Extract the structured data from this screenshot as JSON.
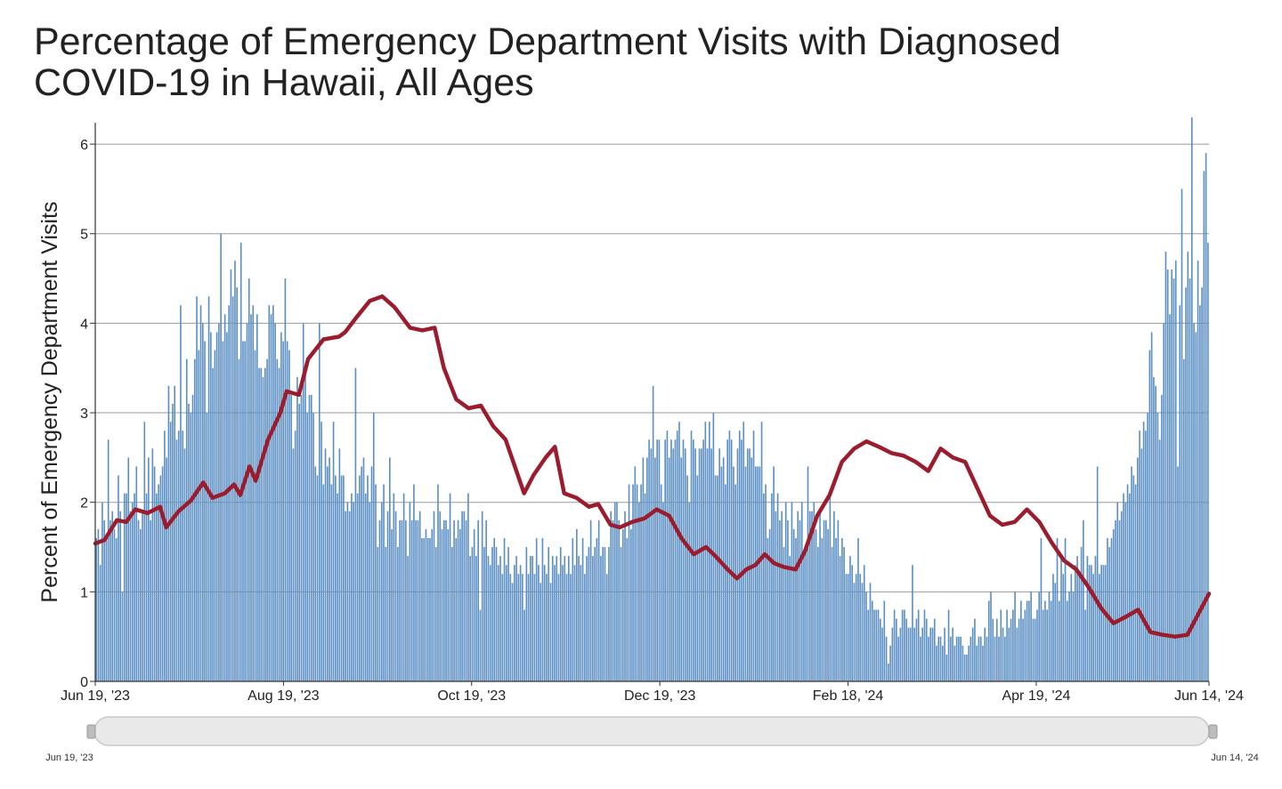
{
  "chart_data": {
    "type": "bar",
    "title": "Percentage of Emergency Department Visits with Diagnosed COVID-19 in Hawaii, All Ages",
    "xlabel": "",
    "ylabel": "Percent of Emergency Department Visits",
    "x_range": [
      "2023-06-19",
      "2024-06-14"
    ],
    "ylim": [
      0,
      6.1
    ],
    "y_ticks": [
      0,
      1,
      2,
      3,
      4,
      5,
      6
    ],
    "x_ticks": [
      {
        "date": "2023-06-19",
        "label": "Jun 19, '23"
      },
      {
        "date": "2023-08-19",
        "label": "Aug 19, '23"
      },
      {
        "date": "2023-10-19",
        "label": "Oct 19, '23"
      },
      {
        "date": "2023-12-19",
        "label": "Dec 19, '23"
      },
      {
        "date": "2024-02-18",
        "label": "Feb 18, '24"
      },
      {
        "date": "2024-04-19",
        "label": "Apr 19, '24"
      },
      {
        "date": "2024-06-14",
        "label": "Jun 14, '24"
      }
    ],
    "grid": true,
    "colors": {
      "bars": "#5b8fc4",
      "trend": "#9b1c2c",
      "grid": "#9a9a9a"
    },
    "series": [
      {
        "kind": "bar",
        "values": [
          1.6,
          1.7,
          1.3,
          2.0,
          1.8,
          1.6,
          2.7,
          1.8,
          1.9,
          1.7,
          1.6,
          2.3,
          1.9,
          1.0,
          2.1,
          2.1,
          2.5,
          1.9,
          2.0,
          2.1,
          2.4,
          1.8,
          1.7,
          1.9,
          2.9,
          2.1,
          2.5,
          1.8,
          2.6,
          2.4,
          2.1,
          2.2,
          2.3,
          2.4,
          2.8,
          2.5,
          3.3,
          2.9,
          3.1,
          3.3,
          2.7,
          2.8,
          4.2,
          2.8,
          2.6,
          3.6,
          3.1,
          3.0,
          3.2,
          3.6,
          4.3,
          3.7,
          4.2,
          4.0,
          3.8,
          3.0,
          4.3,
          3.9,
          3.5,
          3.7,
          3.9,
          4.0,
          5.0,
          3.8,
          4.1,
          3.9,
          4.2,
          4.6,
          4.3,
          4.7,
          4.4,
          3.6,
          4.9,
          3.8,
          3.8,
          4.0,
          4.5,
          4.1,
          4.2,
          3.7,
          4.1,
          3.5,
          3.5,
          3.4,
          3.5,
          3.6,
          4.2,
          4.1,
          4.2,
          4.0,
          3.6,
          3.5,
          3.9,
          3.8,
          4.5,
          3.8,
          3.7,
          3.2,
          2.6,
          2.8,
          3.4,
          3.1,
          3.2,
          4.0,
          3.5,
          3.0,
          3.2,
          3.2,
          3.0,
          2.4,
          2.3,
          4.0,
          2.9,
          2.2,
          2.6,
          2.4,
          2.5,
          2.2,
          2.9,
          2.3,
          2.1,
          2.6,
          2.3,
          2.3,
          1.9,
          2.0,
          1.9,
          2.1,
          2.0,
          3.5,
          2.1,
          2.3,
          2.4,
          2.5,
          2.1,
          2.3,
          2.0,
          2.4,
          3.0,
          2.2,
          1.5,
          1.8,
          2.0,
          2.2,
          1.5,
          1.9,
          2.5,
          1.7,
          2.1,
          1.9,
          1.5,
          1.8,
          1.8,
          2.1,
          1.8,
          1.4,
          2.0,
          1.8,
          2.2,
          1.8,
          1.8,
          1.9,
          1.6,
          1.6,
          1.7,
          1.6,
          1.6,
          1.7,
          1.9,
          1.5,
          2.2,
          1.9,
          1.7,
          1.8,
          1.8,
          1.7,
          2.1,
          1.5,
          1.8,
          1.6,
          1.8,
          1.7,
          1.9,
          1.9,
          1.8,
          2.1,
          1.4,
          1.5,
          1.7,
          1.4,
          1.8,
          0.8,
          1.9,
          1.5,
          1.8,
          1.4,
          1.3,
          1.5,
          1.6,
          1.5,
          1.3,
          1.4,
          1.2,
          1.6,
          1.3,
          1.5,
          1.2,
          1.1,
          1.3,
          1.4,
          1.2,
          1.3,
          1.2,
          0.8,
          1.5,
          1.2,
          1.4,
          1.4,
          1.2,
          1.6,
          1.3,
          1.1,
          1.6,
          1.3,
          1.2,
          1.5,
          1.1,
          1.4,
          1.3,
          1.4,
          1.2,
          1.5,
          1.3,
          1.4,
          1.2,
          1.4,
          1.2,
          1.6,
          1.3,
          1.7,
          1.4,
          1.3,
          1.6,
          1.2,
          1.4,
          1.5,
          1.8,
          1.4,
          1.5,
          1.6,
          1.8,
          1.4,
          1.5,
          1.5,
          1.2,
          1.5,
          1.9,
          1.8,
          2.0,
          2.0,
          1.8,
          1.5,
          1.7,
          1.9,
          1.6,
          2.2,
          1.7,
          2.2,
          2.4,
          2.2,
          2.0,
          2.2,
          2.5,
          2.1,
          2.5,
          2.7,
          2.6,
          3.3,
          2.5,
          2.7,
          2.7,
          2.2,
          2.0,
          2.7,
          2.8,
          2.5,
          2.7,
          2.6,
          2.7,
          2.8,
          2.9,
          2.5,
          2.7,
          2.6,
          2.3,
          2.0,
          2.8,
          2.7,
          2.6,
          2.3,
          2.6,
          2.6,
          2.7,
          2.9,
          2.6,
          2.9,
          2.6,
          3.0,
          2.3,
          2.3,
          2.6,
          2.4,
          2.5,
          2.2,
          2.7,
          2.8,
          2.7,
          2.4,
          2.2,
          2.6,
          2.8,
          2.7,
          2.9,
          2.4,
          2.6,
          2.6,
          2.5,
          2.8,
          2.4,
          2.4,
          2.4,
          2.9,
          2.1,
          2.2,
          1.6,
          1.7,
          2.1,
          2.4,
          1.9,
          2.1,
          1.8,
          1.9,
          1.5,
          2.0,
          1.8,
          1.4,
          2.0,
          1.7,
          1.6,
          1.9,
          1.8,
          2.0,
          1.4,
          1.5,
          2.4,
          1.9,
          1.9,
          2.0,
          1.7,
          1.5,
          1.9,
          1.6,
          1.8,
          1.8,
          1.7,
          2.1,
          1.5,
          1.9,
          1.6,
          1.8,
          1.4,
          1.6,
          1.5,
          1.2,
          1.2,
          1.4,
          1.3,
          1.1,
          1.2,
          1.6,
          1.2,
          1.1,
          1.3,
          1.0,
          0.8,
          1.1,
          0.9,
          0.8,
          0.8,
          0.8,
          0.7,
          0.6,
          0.9,
          0.5,
          0.2,
          0.4,
          0.6,
          0.8,
          0.7,
          0.5,
          0.6,
          0.8,
          0.8,
          0.7,
          0.6,
          0.6,
          1.3,
          0.6,
          0.7,
          0.8,
          0.5,
          0.6,
          0.8,
          0.7,
          0.5,
          0.6,
          0.6,
          0.7,
          0.4,
          0.5,
          0.5,
          0.4,
          0.6,
          0.3,
          0.8,
          0.5,
          0.6,
          0.4,
          0.5,
          0.5,
          0.5,
          0.4,
          0.3,
          0.3,
          0.4,
          0.5,
          0.6,
          0.7,
          0.4,
          0.5,
          0.5,
          0.4,
          0.6,
          0.5,
          0.9,
          1.0,
          0.7,
          0.5,
          0.7,
          0.5,
          0.8,
          0.6,
          0.5,
          0.8,
          0.6,
          0.7,
          0.8,
          1.0,
          0.6,
          0.7,
          0.9,
          0.7,
          0.8,
          0.9,
          0.9,
          1.0,
          0.7,
          0.7,
          0.8,
          1.0,
          1.6,
          0.8,
          0.9,
          0.8,
          1.0,
          0.9,
          1.2,
          1.1,
          1.6,
          0.9,
          1.4,
          1.2,
          1.6,
          0.9,
          1.0,
          1.2,
          1.0,
          1.3,
          1.4,
          1.2,
          1.5,
          1.8,
          0.8,
          1.4,
          1.3,
          1.3,
          1.2,
          1.4,
          2.4,
          1.2,
          1.3,
          1.3,
          1.3,
          1.6,
          1.5,
          1.6,
          1.7,
          1.8,
          2.0,
          1.8,
          1.9,
          2.1,
          2.0,
          2.2,
          2.1,
          2.4,
          2.3,
          2.2,
          2.5,
          2.8,
          2.6,
          2.9,
          2.8,
          3.0,
          3.7,
          3.9,
          3.4,
          3.3,
          3.0,
          2.7,
          3.2,
          4.0,
          4.8,
          4.6,
          4.1,
          4.6,
          4.5,
          4.7,
          2.4,
          4.2,
          5.5,
          3.6,
          4.4,
          4.8,
          4.5,
          6.3,
          4.0,
          3.9,
          4.7,
          4.2,
          4.4,
          5.7,
          5.9,
          4.9
        ]
      },
      {
        "kind": "line",
        "name": "",
        "points": [
          [
            "2023-06-19",
            1.54
          ],
          [
            "2023-06-22",
            1.58
          ],
          [
            "2023-06-26",
            1.8
          ],
          [
            "2023-06-29",
            1.78
          ],
          [
            "2023-07-02",
            1.92
          ],
          [
            "2023-07-06",
            1.88
          ],
          [
            "2023-07-10",
            1.95
          ],
          [
            "2023-07-12",
            1.72
          ],
          [
            "2023-07-16",
            1.9
          ],
          [
            "2023-07-20",
            2.02
          ],
          [
            "2023-07-24",
            2.22
          ],
          [
            "2023-07-27",
            2.05
          ],
          [
            "2023-07-31",
            2.1
          ],
          [
            "2023-08-03",
            2.2
          ],
          [
            "2023-08-05",
            2.08
          ],
          [
            "2023-08-08",
            2.4
          ],
          [
            "2023-08-10",
            2.24
          ],
          [
            "2023-08-14",
            2.7
          ],
          [
            "2023-08-18",
            3.0
          ],
          [
            "2023-08-20",
            3.24
          ],
          [
            "2023-08-24",
            3.2
          ],
          [
            "2023-08-27",
            3.6
          ],
          [
            "2023-09-01",
            3.82
          ],
          [
            "2023-09-06",
            3.85
          ],
          [
            "2023-09-08",
            3.9
          ],
          [
            "2023-09-12",
            4.08
          ],
          [
            "2023-09-16",
            4.25
          ],
          [
            "2023-09-20",
            4.3
          ],
          [
            "2023-09-24",
            4.18
          ],
          [
            "2023-09-29",
            3.95
          ],
          [
            "2023-10-03",
            3.92
          ],
          [
            "2023-10-07",
            3.95
          ],
          [
            "2023-10-10",
            3.5
          ],
          [
            "2023-10-14",
            3.15
          ],
          [
            "2023-10-18",
            3.05
          ],
          [
            "2023-10-22",
            3.08
          ],
          [
            "2023-10-26",
            2.85
          ],
          [
            "2023-10-30",
            2.7
          ],
          [
            "2023-11-02",
            2.4
          ],
          [
            "2023-11-05",
            2.1
          ],
          [
            "2023-11-08",
            2.3
          ],
          [
            "2023-11-12",
            2.5
          ],
          [
            "2023-11-15",
            2.62
          ],
          [
            "2023-11-18",
            2.1
          ],
          [
            "2023-11-22",
            2.05
          ],
          [
            "2023-11-26",
            1.95
          ],
          [
            "2023-11-29",
            1.98
          ],
          [
            "2023-12-03",
            1.75
          ],
          [
            "2023-12-06",
            1.72
          ],
          [
            "2023-12-10",
            1.78
          ],
          [
            "2023-12-14",
            1.82
          ],
          [
            "2023-12-18",
            1.92
          ],
          [
            "2023-12-22",
            1.85
          ],
          [
            "2023-12-26",
            1.6
          ],
          [
            "2023-12-30",
            1.42
          ],
          [
            "2024-01-03",
            1.5
          ],
          [
            "2024-01-06",
            1.4
          ],
          [
            "2024-01-10",
            1.25
          ],
          [
            "2024-01-13",
            1.15
          ],
          [
            "2024-01-16",
            1.25
          ],
          [
            "2024-01-19",
            1.3
          ],
          [
            "2024-01-22",
            1.42
          ],
          [
            "2024-01-25",
            1.32
          ],
          [
            "2024-01-28",
            1.28
          ],
          [
            "2024-02-01",
            1.25
          ],
          [
            "2024-02-04",
            1.45
          ],
          [
            "2024-02-08",
            1.85
          ],
          [
            "2024-02-12",
            2.08
          ],
          [
            "2024-02-16",
            2.45
          ],
          [
            "2024-02-20",
            2.6
          ],
          [
            "2024-02-24",
            2.68
          ],
          [
            "2024-02-28",
            2.62
          ],
          [
            "2024-03-03",
            2.55
          ],
          [
            "2024-03-07",
            2.52
          ],
          [
            "2024-03-11",
            2.45
          ],
          [
            "2024-03-15",
            2.35
          ],
          [
            "2024-03-19",
            2.6
          ],
          [
            "2024-03-23",
            2.5
          ],
          [
            "2024-03-27",
            2.45
          ],
          [
            "2024-03-31",
            2.15
          ],
          [
            "2024-04-04",
            1.85
          ],
          [
            "2024-04-08",
            1.75
          ],
          [
            "2024-04-12",
            1.78
          ],
          [
            "2024-04-16",
            1.92
          ],
          [
            "2024-04-20",
            1.78
          ],
          [
            "2024-04-24",
            1.55
          ],
          [
            "2024-04-28",
            1.35
          ],
          [
            "2024-05-02",
            1.25
          ],
          [
            "2024-05-06",
            1.05
          ],
          [
            "2024-05-10",
            0.82
          ],
          [
            "2024-05-14",
            0.65
          ],
          [
            "2024-05-18",
            0.72
          ],
          [
            "2024-05-22",
            0.8
          ],
          [
            "2024-05-26",
            0.55
          ],
          [
            "2024-05-30",
            0.52
          ],
          [
            "2024-06-03",
            0.5
          ],
          [
            "2024-06-07",
            0.52
          ],
          [
            "2024-06-14",
            0.98
          ]
        ]
      }
    ],
    "range_selector": {
      "start_label": "Jun 19, '23",
      "end_label": "Jun 14, '24"
    }
  }
}
